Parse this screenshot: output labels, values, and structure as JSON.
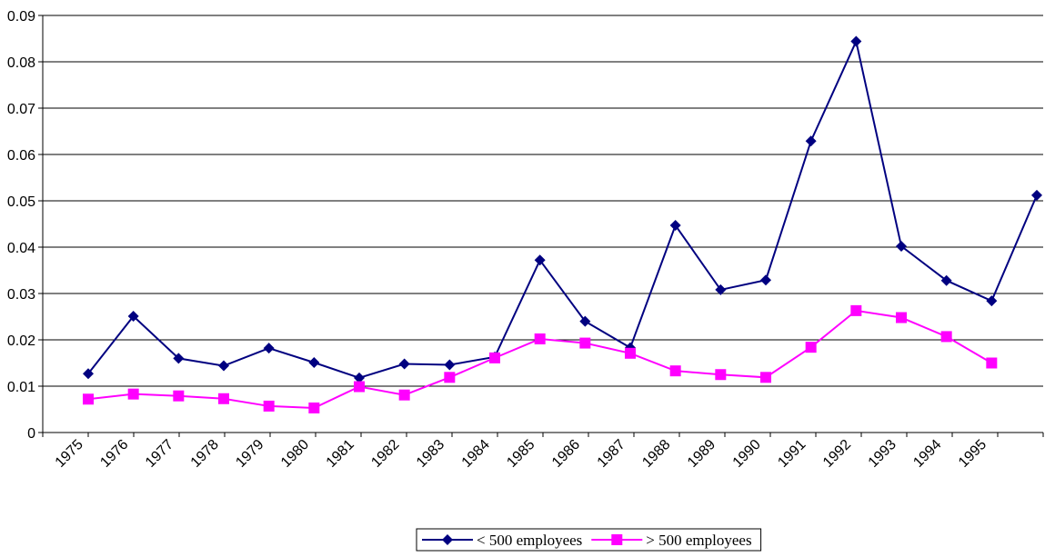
{
  "chart_data": {
    "type": "line",
    "categories": [
      "1975",
      "1976",
      "1977",
      "1978",
      "1979",
      "1980",
      "1981",
      "1982",
      "1983",
      "1984",
      "1985",
      "1986",
      "1987",
      "1988",
      "1989",
      "1990",
      "1991",
      "1992",
      "1993",
      "1994",
      "1995",
      null
    ],
    "series": [
      {
        "name": "< 500 employees",
        "color": "#000080",
        "marker": "diamond",
        "values": [
          0.0127,
          0.0251,
          0.016,
          0.0144,
          0.0182,
          0.0151,
          0.0118,
          0.0148,
          0.0146,
          0.0163,
          0.0372,
          0.024,
          0.0183,
          0.0447,
          0.0308,
          0.0329,
          0.0629,
          0.0844,
          0.0402,
          0.0328,
          0.0284,
          0.0512
        ]
      },
      {
        "name": "> 500 employees",
        "color": "#ff00ff",
        "marker": "square",
        "values": [
          0.0072,
          0.0083,
          0.0079,
          0.0073,
          0.0057,
          0.0053,
          0.0099,
          0.0081,
          0.0119,
          0.0161,
          0.0202,
          0.0193,
          0.0171,
          0.0133,
          0.0125,
          0.0119,
          0.0184,
          0.0263,
          0.0248,
          0.0207,
          0.015,
          null
        ]
      }
    ],
    "ylim": [
      0,
      0.09
    ],
    "yticks": [
      0,
      0.01,
      0.02,
      0.03,
      0.04,
      0.05,
      0.06,
      0.07,
      0.08,
      0.09
    ],
    "grid": true,
    "legend": "bottom"
  }
}
